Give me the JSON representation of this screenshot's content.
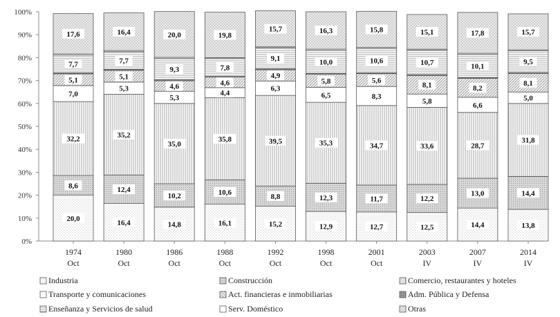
{
  "chart_data": {
    "type": "bar",
    "stacked": true,
    "categories": [
      [
        "1974",
        "Oct"
      ],
      [
        "1980",
        "Oct"
      ],
      [
        "1986",
        "Oct"
      ],
      [
        "1988",
        "Oct"
      ],
      [
        "1992",
        "Oct"
      ],
      [
        "1998",
        "Oct"
      ],
      [
        "2001",
        "Oct"
      ],
      [
        "2003",
        "IV"
      ],
      [
        "2007",
        "IV"
      ],
      [
        "2014",
        "IV"
      ]
    ],
    "ylim": [
      0,
      100
    ],
    "yticks": [
      "0%",
      "10%",
      "20%",
      "30%",
      "40%",
      "50%",
      "60%",
      "70%",
      "80%",
      "90%",
      "100%"
    ],
    "grid": false,
    "legend_position": "bottom",
    "series": [
      {
        "name": "Industria",
        "pattern": "plain",
        "values": [
          20.0,
          16.4,
          14.8,
          16.1,
          15.2,
          12.9,
          12.7,
          12.5,
          14.4,
          13.8
        ],
        "labels": [
          "20,0",
          "16,4",
          "14,8",
          "16,1",
          "15,2",
          "12,9",
          "12,7",
          "12,5",
          "14,4",
          "13,8"
        ]
      },
      {
        "name": "Construcción",
        "pattern": "dots-dense",
        "values": [
          8.6,
          12.4,
          10.2,
          10.6,
          8.8,
          12.3,
          11.7,
          12.2,
          13.0,
          14.4
        ],
        "labels": [
          "8,6",
          "12,4",
          "10,2",
          "10,6",
          "8,8",
          "12,3",
          "11,7",
          "12,2",
          "13,0",
          "14,4"
        ]
      },
      {
        "name": "Comercio, restaurantes y hoteles",
        "pattern": "vertical-lines",
        "values": [
          32.2,
          35.2,
          35.0,
          35.8,
          39.5,
          35.3,
          34.7,
          33.6,
          28.7,
          31.8
        ],
        "labels": [
          "32,2",
          "35,2",
          "35,0",
          "35,8",
          "39,5",
          "35,3",
          "34,7",
          "33,6",
          "28,7",
          "31,8"
        ]
      },
      {
        "name": "Transporte y comunicaciones",
        "pattern": "plain",
        "values": [
          7.0,
          5.3,
          5.3,
          4.4,
          6.3,
          6.5,
          8.3,
          5.8,
          6.6,
          5.0
        ],
        "labels": [
          "7,0",
          "5,3",
          "5,3",
          "4,4",
          "6,3",
          "6,5",
          "8,3",
          "5,8",
          "6,6",
          "5,0"
        ]
      },
      {
        "name": "Act. financieras e inmobiliarias",
        "pattern": "diagonal",
        "values": [
          5.1,
          5.1,
          4.6,
          4.6,
          4.9,
          5.8,
          5.6,
          8.1,
          8.2,
          8.1
        ],
        "labels": [
          "5,1",
          "5,1",
          "4,6",
          "4,6",
          "4,9",
          "5,8",
          "5,6",
          "8,1",
          "8,2",
          "8,1"
        ]
      },
      {
        "name": "Adm. Pública y Defensa",
        "pattern": "dark-dense",
        "values": [
          0.5,
          0.5,
          0.4,
          0.3,
          0.5,
          0.4,
          0.4,
          0.4,
          0.4,
          0.4
        ],
        "labels": [
          "",
          "",
          "",
          "",
          "",
          "",
          "",
          "",
          "",
          ""
        ]
      },
      {
        "name": "Enseñanza y Servicios de salud",
        "pattern": "horizontal-lines",
        "values": [
          7.7,
          7.7,
          9.3,
          7.8,
          9.1,
          10.0,
          10.6,
          10.7,
          10.1,
          9.5
        ],
        "labels": [
          "7,7",
          "7,7",
          "9,3",
          "7,8",
          "9,1",
          "10,0",
          "10,6",
          "10,7",
          "10,1",
          "9,5"
        ]
      },
      {
        "name": "Serv. Doméstico",
        "pattern": "plain",
        "values": [
          0.5,
          0.5,
          0.5,
          0.4,
          0.4,
          0.5,
          0.4,
          0.4,
          0.5,
          0.4
        ],
        "labels": [
          "",
          "",
          "",
          "",
          "",
          "",
          "",
          "",
          "",
          ""
        ]
      },
      {
        "name": "Otras",
        "pattern": "checker",
        "values": [
          17.6,
          16.4,
          20.0,
          19.8,
          15.7,
          16.3,
          15.8,
          15.1,
          17.8,
          15.7
        ],
        "labels": [
          "17,6",
          "16,4",
          "20,0",
          "19,8",
          "15,7",
          "16,3",
          "15,8",
          "15,1",
          "17,8",
          "15,7"
        ]
      }
    ]
  }
}
